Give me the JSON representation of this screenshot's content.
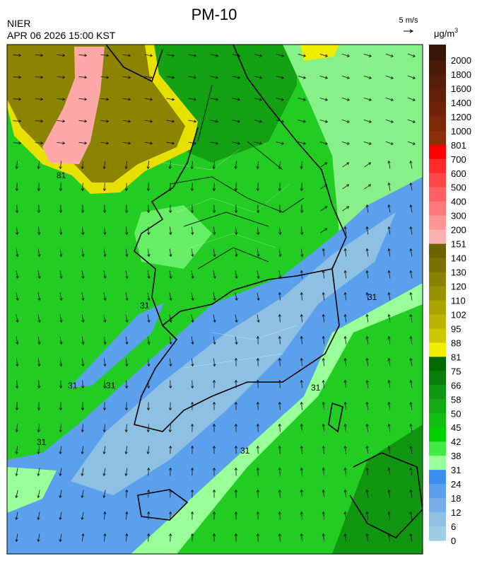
{
  "header": {
    "title": "PM-10",
    "agency": "NIER",
    "datetime": "APR 06 2026 15:00 KST",
    "wind_scale": "5 m/s",
    "unit": "μg/m",
    "unit_exponent": "3"
  },
  "legend": {
    "labels": [
      2000,
      1800,
      1600,
      1400,
      1200,
      1000,
      801,
      700,
      600,
      500,
      400,
      300,
      200,
      151,
      140,
      130,
      120,
      110,
      102,
      95,
      88,
      81,
      75,
      66,
      58,
      50,
      45,
      42,
      38,
      31,
      24,
      18,
      12,
      6,
      0
    ],
    "colors": [
      "#3a1608",
      "#4a1a08",
      "#561d08",
      "#632008",
      "#702407",
      "#7e2906",
      "#8c2e06",
      "#ff0000",
      "#ff2a2a",
      "#ff4545",
      "#ff6060",
      "#ff7a7a",
      "#ff9494",
      "#ffb0b0",
      "#6b6300",
      "#7a7100",
      "#898100",
      "#999200",
      "#a9a300",
      "#bab500",
      "#ccc700",
      "#f2ee00",
      "#006a00",
      "#0a800a",
      "#0f950f",
      "#12aa12",
      "#10bf10",
      "#00d200",
      "#44ea44",
      "#99ff99",
      "#3b8ef0",
      "#5aa0ec",
      "#75b0e8",
      "#8ec0e4",
      "#9ecde6"
    ]
  },
  "map": {
    "contour_labels": [
      "81",
      "31",
      "31",
      "31",
      "31",
      "31",
      "31",
      "31"
    ]
  }
}
